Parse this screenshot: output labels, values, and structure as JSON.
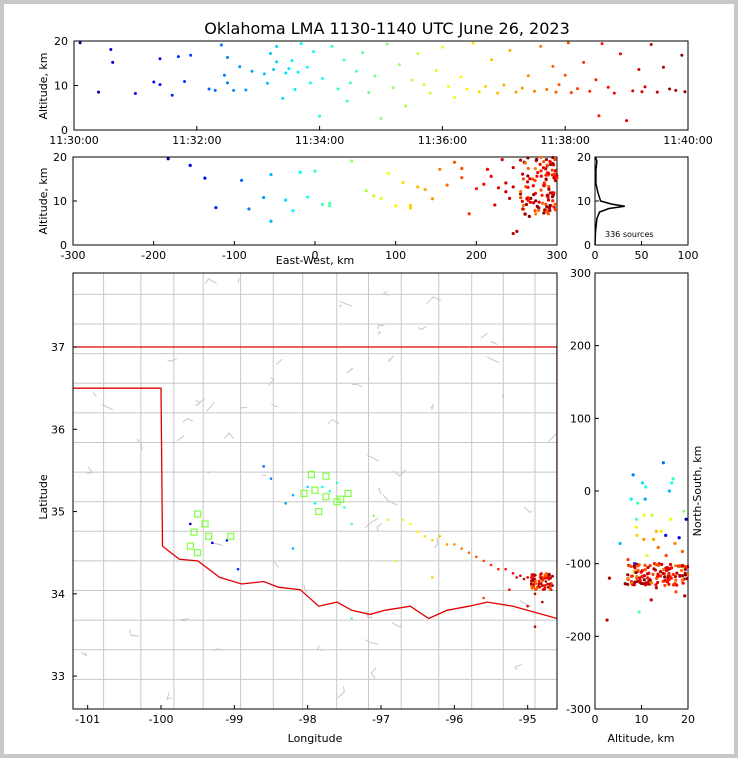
{
  "title": "Oklahoma LMA 1130-1140 UTC June 26, 2023",
  "colors": {
    "axes": "#000000",
    "map_lines": "#c4c4c4",
    "border": "#e00000",
    "station": "#80ff40",
    "background": "#ffffff"
  },
  "chart_data": [
    {
      "id": "time_height",
      "type": "scatter",
      "title": "Oklahoma LMA 1130-1140 UTC June 26, 2023",
      "ylabel": "Altitude, km",
      "xlim": [
        "11:30:00",
        "11:40:00"
      ],
      "ylim": [
        0,
        20
      ],
      "x_ticks": [
        "11:30:00",
        "11:32:00",
        "11:34:00",
        "11:36:00",
        "11:38:00",
        "11:40:00"
      ],
      "y_ticks": [
        "0",
        "10",
        "20"
      ],
      "color_scale": "time (blue early to red late)",
      "points_tmin_alt": [
        [
          0.1,
          19.6
        ],
        [
          0.6,
          18.1
        ],
        [
          0.63,
          15.2
        ],
        [
          0.4,
          8.5
        ],
        [
          1.0,
          8.2
        ],
        [
          1.3,
          10.8
        ],
        [
          1.4,
          16
        ],
        [
          1.4,
          10.2
        ],
        [
          1.6,
          7.8
        ],
        [
          1.7,
          16.5
        ],
        [
          1.8,
          10.9
        ],
        [
          1.9,
          16.8
        ],
        [
          2.2,
          9.2
        ],
        [
          2.3,
          8.9
        ],
        [
          2.4,
          19.1
        ],
        [
          2.45,
          12.3
        ],
        [
          2.5,
          10.6
        ],
        [
          2.5,
          16.3
        ],
        [
          2.6,
          8.9
        ],
        [
          2.7,
          14.2
        ],
        [
          2.8,
          9
        ],
        [
          2.9,
          13.2
        ],
        [
          3.1,
          12.6
        ],
        [
          3.15,
          10.5
        ],
        [
          3.2,
          17.2
        ],
        [
          3.25,
          13.6
        ],
        [
          3.3,
          18.8
        ],
        [
          3.3,
          15.3
        ],
        [
          3.4,
          7.1
        ],
        [
          3.45,
          12.8
        ],
        [
          3.5,
          13.8
        ],
        [
          3.55,
          15.6
        ],
        [
          3.6,
          9.1
        ],
        [
          3.65,
          13
        ],
        [
          3.7,
          19.4
        ],
        [
          3.8,
          14.1
        ],
        [
          3.85,
          10.6
        ],
        [
          3.9,
          17.6
        ],
        [
          4.0,
          3.1
        ],
        [
          4.05,
          11.6
        ],
        [
          4.2,
          18.8
        ],
        [
          4.3,
          9.2
        ],
        [
          4.4,
          15.7
        ],
        [
          4.45,
          6.5
        ],
        [
          4.5,
          10.6
        ],
        [
          4.6,
          13.2
        ],
        [
          4.7,
          17.4
        ],
        [
          4.8,
          8.4
        ],
        [
          4.9,
          12.1
        ],
        [
          5.0,
          2.6
        ],
        [
          5.1,
          19.3
        ],
        [
          5.2,
          9.5
        ],
        [
          5.3,
          14.7
        ],
        [
          5.4,
          5.4
        ],
        [
          5.5,
          11.2
        ],
        [
          5.6,
          17.2
        ],
        [
          5.7,
          10.2
        ],
        [
          5.8,
          8.3
        ],
        [
          5.9,
          13.4
        ],
        [
          6.0,
          18.6
        ],
        [
          6.1,
          9.8
        ],
        [
          6.2,
          7.3
        ],
        [
          6.3,
          11.9
        ],
        [
          6.4,
          9.2
        ],
        [
          6.5,
          19.5
        ],
        [
          6.6,
          8.6
        ],
        [
          6.7,
          9.8
        ],
        [
          6.8,
          15.8
        ],
        [
          6.9,
          8.3
        ],
        [
          7.0,
          10.1
        ],
        [
          7.1,
          17.9
        ],
        [
          7.2,
          8.5
        ],
        [
          7.3,
          9.4
        ],
        [
          7.4,
          12.2
        ],
        [
          7.5,
          8.7
        ],
        [
          7.6,
          18.8
        ],
        [
          7.7,
          9.1
        ],
        [
          7.8,
          14.3
        ],
        [
          7.85,
          8.5
        ],
        [
          7.9,
          10.2
        ],
        [
          8.0,
          12.3
        ],
        [
          8.05,
          19.6
        ],
        [
          8.1,
          8.4
        ],
        [
          8.2,
          9.3
        ],
        [
          8.3,
          15.2
        ],
        [
          8.4,
          8.7
        ],
        [
          8.5,
          11.3
        ],
        [
          8.55,
          3.2
        ],
        [
          8.6,
          19.4
        ],
        [
          8.7,
          9.6
        ],
        [
          8.8,
          8.3
        ],
        [
          8.9,
          17.1
        ],
        [
          9.0,
          2.1
        ],
        [
          9.1,
          8.8
        ],
        [
          9.2,
          13.6
        ],
        [
          9.25,
          8.6
        ],
        [
          9.3,
          9.7
        ],
        [
          9.4,
          19.2
        ],
        [
          9.5,
          8.5
        ],
        [
          9.6,
          14.1
        ],
        [
          9.7,
          9.2
        ],
        [
          9.8,
          8.9
        ],
        [
          9.9,
          16.8
        ],
        [
          9.95,
          8.6
        ]
      ]
    },
    {
      "id": "ew_alt",
      "type": "scatter",
      "xlabel": "East-West, km",
      "ylabel": "Altitude, km",
      "xlim": [
        -300,
        300
      ],
      "ylim": [
        0,
        20
      ],
      "x_ticks": [
        "-300",
        "-200",
        "-100",
        "0",
        "100",
        "200",
        "300"
      ],
      "y_ticks": [
        "0",
        "10",
        "20"
      ]
    },
    {
      "id": "alt_hist",
      "type": "line",
      "ylim": [
        0,
        20
      ],
      "xlim": [
        0,
        100
      ],
      "x_ticks": [
        "0",
        "50",
        "100"
      ],
      "y_ticks": [
        "0",
        "10",
        "20"
      ],
      "annotation": "336 sources",
      "profile": [
        [
          0,
          0
        ],
        [
          0.5,
          3
        ],
        [
          2,
          6
        ],
        [
          5,
          7.5
        ],
        [
          15,
          8.3
        ],
        [
          32,
          8.8
        ],
        [
          18,
          9.3
        ],
        [
          6,
          10
        ],
        [
          3,
          12
        ],
        [
          1,
          14
        ],
        [
          1,
          17
        ],
        [
          2,
          19
        ],
        [
          0.5,
          20
        ]
      ]
    },
    {
      "id": "plan_view",
      "type": "scatter",
      "xlabel": "Longitude",
      "ylabel": "Latitude",
      "xlim": [
        -101.2,
        -94.6
      ],
      "ylim": [
        32.6,
        37.9
      ],
      "x_ticks": [
        "-101",
        "-100",
        "-99",
        "-98",
        "-97",
        "-96",
        "-95"
      ],
      "y_ticks": [
        "33",
        "34",
        "35",
        "36",
        "37"
      ],
      "stations_lonlat": [
        [
          -97.95,
          35.45
        ],
        [
          -97.75,
          35.43
        ],
        [
          -98.05,
          35.22
        ],
        [
          -97.9,
          35.26
        ],
        [
          -97.75,
          35.18
        ],
        [
          -97.6,
          35.12
        ],
        [
          -97.45,
          35.22
        ],
        [
          -97.85,
          35.0
        ],
        [
          -99.5,
          34.97
        ],
        [
          -99.4,
          34.85
        ],
        [
          -99.55,
          34.75
        ],
        [
          -99.35,
          34.7
        ],
        [
          -99.05,
          34.7
        ],
        [
          -99.5,
          34.5
        ],
        [
          -99.6,
          34.58
        ],
        [
          -97.55,
          35.15
        ]
      ],
      "points_lonlat": [
        [
          -99.6,
          34.85
        ],
        [
          -99.3,
          34.62
        ],
        [
          -99.1,
          34.65
        ],
        [
          -98.95,
          34.3
        ],
        [
          -98.5,
          35.4
        ],
        [
          -98.3,
          35.1
        ],
        [
          -98.2,
          35.2
        ],
        [
          -98.0,
          35.3
        ],
        [
          -97.9,
          35.1
        ],
        [
          -97.8,
          35.3
        ],
        [
          -97.7,
          35.25
        ],
        [
          -97.6,
          35.35
        ],
        [
          -97.5,
          35.05
        ],
        [
          -97.4,
          34.85
        ],
        [
          -97.1,
          34.95
        ],
        [
          -96.9,
          34.9
        ],
        [
          -96.7,
          34.9
        ],
        [
          -96.6,
          34.85
        ],
        [
          -96.5,
          34.75
        ],
        [
          -96.4,
          34.7
        ],
        [
          -96.3,
          34.65
        ],
        [
          -96.2,
          34.7
        ],
        [
          -96.1,
          34.6
        ],
        [
          -96.0,
          34.6
        ],
        [
          -95.9,
          34.55
        ],
        [
          -95.8,
          34.5
        ],
        [
          -95.7,
          34.45
        ],
        [
          -95.6,
          34.4
        ],
        [
          -95.5,
          34.35
        ],
        [
          -95.4,
          34.3
        ],
        [
          -95.3,
          34.3
        ],
        [
          -95.2,
          34.25
        ],
        [
          -95.15,
          34.2
        ],
        [
          -95.1,
          34.22
        ],
        [
          -95.05,
          34.18
        ],
        [
          -95.0,
          34.2
        ],
        [
          -94.95,
          34.15
        ],
        [
          -94.9,
          34.18
        ],
        [
          -94.85,
          34.12
        ],
        [
          -94.8,
          34.1
        ],
        [
          -94.75,
          34.15
        ],
        [
          -94.72,
          34.08
        ],
        [
          -94.7,
          34.12
        ],
        [
          -94.68,
          34.05
        ],
        [
          -94.66,
          34.1
        ],
        [
          -94.9,
          34.0
        ],
        [
          -95.6,
          33.95
        ],
        [
          -96.3,
          34.2
        ],
        [
          -95.0,
          33.85
        ],
        [
          -94.9,
          33.6
        ],
        [
          -94.8,
          33.9
        ],
        [
          -97.4,
          33.7
        ],
        [
          -98.6,
          35.55
        ],
        [
          -98.2,
          34.55
        ],
        [
          -96.8,
          34.4
        ],
        [
          -95.25,
          34.05
        ]
      ]
    },
    {
      "id": "alt_ns",
      "type": "scatter",
      "xlabel": "Altitude, km",
      "ylabel": "North-South, km",
      "xlim": [
        0,
        20
      ],
      "ylim": [
        -300,
        300
      ],
      "x_ticks": [
        "0",
        "10",
        "20"
      ],
      "y_ticks": [
        "-300",
        "-200",
        "-100",
        "0",
        "100",
        "200",
        "300"
      ]
    }
  ]
}
